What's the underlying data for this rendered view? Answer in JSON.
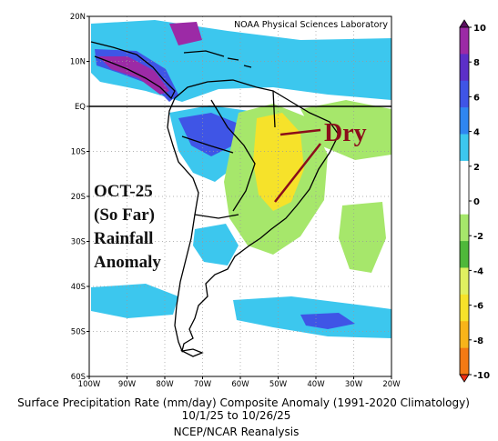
{
  "map": {
    "attribution": "NOAA Physical Sciences Laboratory",
    "equator_label": "EQ",
    "lat_labels": [
      "20N",
      "10N",
      "EQ",
      "10S",
      "20S",
      "30S",
      "40S",
      "50S",
      "60S"
    ],
    "lon_labels": [
      "100W",
      "90W",
      "80W",
      "70W",
      "60W",
      "50W",
      "40W",
      "30W",
      "20W"
    ],
    "lat_values": [
      20,
      10,
      0,
      -10,
      -20,
      -30,
      -40,
      -50,
      -60
    ],
    "lon_values": [
      -100,
      -90,
      -80,
      -70,
      -60,
      -50,
      -40,
      -30,
      -20
    ],
    "extent": {
      "lon_min": -100,
      "lon_max": -20,
      "lat_min": -60,
      "lat_max": 20
    }
  },
  "annotation": {
    "headline_lines": [
      "OCT-25",
      "(So Far)",
      "Rainfall",
      "Anomaly"
    ],
    "dry_label": "Dry",
    "dry_color": "#8b0d1a"
  },
  "colorbar": {
    "tick_labels": [
      "10",
      "8",
      "6",
      "4",
      "2",
      "0",
      "-2",
      "-4",
      "-6",
      "-8",
      "-10"
    ],
    "tick_values": [
      10,
      8,
      6,
      4,
      2,
      0,
      -2,
      -4,
      -6,
      -8,
      -10
    ],
    "colors": [
      "#5a0f5f",
      "#9c2aa6",
      "#5c2fc8",
      "#3f55e6",
      "#2f86f0",
      "#3cc7ee",
      "#ffffff",
      "#ffffff",
      "#a6e76b",
      "#4fb83a",
      "#e0f060",
      "#f6e22a",
      "#f8b41a",
      "#f47a14",
      "#ee2f12"
    ]
  },
  "caption": {
    "line1": "Surface Precipitation Rate (mm/day) Composite Anomaly (1991-2020 Climatology)",
    "line2": "10/1/25  to 10/26/25",
    "line3": "NCEP/NCAR Reanalysis"
  }
}
